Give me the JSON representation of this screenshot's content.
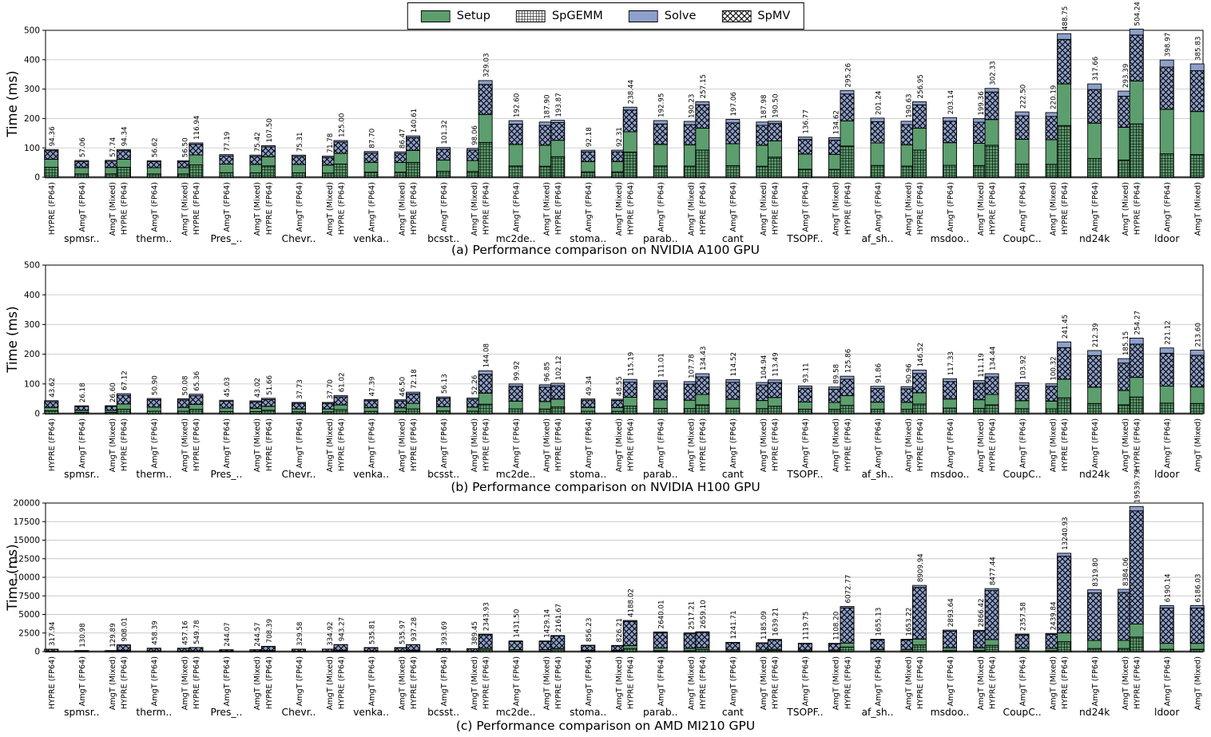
{
  "ylabel": "Time (ms)",
  "colors": {
    "setup": "#5c9e6e",
    "solve": "#8da0cb",
    "hatch": "#000000",
    "legend_bg": "#ffffff",
    "grid": "#c9c9c9",
    "axis": "#000000",
    "baseline": "#3c3c3c"
  },
  "legend": {
    "items": [
      {
        "label": "Setup",
        "swatch": "setup-solid-green"
      },
      {
        "label": "SpGEMM",
        "swatch": "grid-hatch"
      },
      {
        "label": "Solve",
        "swatch": "solve-solid-blue"
      },
      {
        "label": "SpMV",
        "swatch": "diagonal-crosshatch"
      }
    ]
  },
  "bar_series_names": [
    "HYPRE (FP64)",
    "AmgT (FP64)",
    "AmgT (Mixed)"
  ],
  "groups": [
    "spmsr..",
    "therm..",
    "Pres_..",
    "Chevr..",
    "venka..",
    "bcsst..",
    "mc2de..",
    "stoma..",
    "parab..",
    "cant",
    "TSOPF..",
    "af_sh..",
    "msdoo..",
    "CoupC..",
    "nd24k",
    "ldoor"
  ],
  "chart_data": [
    {
      "type": "bar",
      "title": "(a) Performance comparison on NVIDIA A100 GPU",
      "ylabel": "Time (ms)",
      "ylim": [
        0,
        500
      ],
      "yticks": [
        0,
        100,
        200,
        300,
        400,
        500
      ],
      "grid": true,
      "legend_position": "top-center",
      "categories": [
        "spmsr..",
        "therm..",
        "Pres_..",
        "Chevr..",
        "venka..",
        "bcsst..",
        "mc2de..",
        "stoma..",
        "parab..",
        "cant",
        "TSOPF..",
        "af_sh..",
        "msdoo..",
        "CoupC..",
        "nd24k",
        "ldoor"
      ],
      "series": [
        {
          "name": "HYPRE (FP64)",
          "values": [
            94.36,
            94.34,
            116.94,
            107.5,
            125.0,
            140.61,
            329.03,
            193.87,
            238.44,
            257.15,
            190.5,
            295.26,
            256.95,
            302.33,
            488.75,
            504.24
          ]
        },
        {
          "name": "AmgT (FP64)",
          "values": [
            57.06,
            56.62,
            77.19,
            75.31,
            87.7,
            101.32,
            192.6,
            92.18,
            192.95,
            197.06,
            136.77,
            201.24,
            203.14,
            222.5,
            317.66,
            398.97
          ]
        },
        {
          "name": "AmgT (Mixed)",
          "values": [
            57.74,
            56.5,
            75.42,
            71.78,
            86.47,
            98.06,
            187.9,
            92.31,
            190.23,
            187.98,
            134.62,
            190.63,
            199.36,
            220.19,
            293.39,
            385.83
          ]
        }
      ],
      "stack_components": [
        "SpGEMM",
        "Setup",
        "SpMV",
        "Solve"
      ],
      "segment_fractions": {
        "HYPRE (FP64)": [
          0.36,
          0.29,
          0.31,
          0.04
        ],
        "AmgT (FP64)": [
          0.2,
          0.38,
          0.36,
          0.06
        ],
        "AmgT (Mixed)": [
          0.2,
          0.38,
          0.36,
          0.06
        ]
      }
    },
    {
      "type": "bar",
      "title": "(b) Performance comparison on NVIDIA H100 GPU",
      "ylabel": "Time (ms)",
      "ylim": [
        0,
        500
      ],
      "yticks": [
        0,
        100,
        200,
        300,
        400,
        500
      ],
      "grid": true,
      "legend_position": "shared-top",
      "categories": [
        "spmsr..",
        "therm..",
        "Pres_..",
        "Chevr..",
        "venka..",
        "bcsst..",
        "mc2de..",
        "stoma..",
        "parab..",
        "cant",
        "TSOPF..",
        "af_sh..",
        "msdoo..",
        "CoupC..",
        "nd24k",
        "ldoor"
      ],
      "series": [
        {
          "name": "HYPRE (FP64)",
          "values": [
            43.62,
            67.12,
            65.36,
            51.66,
            61.02,
            72.18,
            144.08,
            102.12,
            115.19,
            134.43,
            113.49,
            125.86,
            146.52,
            134.44,
            241.45,
            254.27
          ]
        },
        {
          "name": "AmgT (FP64)",
          "values": [
            26.18,
            50.9,
            45.03,
            37.73,
            47.39,
            56.13,
            99.92,
            49.34,
            111.01,
            114.52,
            93.11,
            91.86,
            117.33,
            103.92,
            212.39,
            221.12
          ]
        },
        {
          "name": "AmgT (Mixed)",
          "values": [
            26.6,
            50.08,
            43.02,
            37.7,
            46.5,
            52.26,
            96.85,
            48.55,
            107.78,
            104.94,
            89.58,
            90.96,
            111.19,
            100.32,
            185.15,
            213.6
          ]
        }
      ],
      "stack_components": [
        "SpGEMM",
        "Setup",
        "SpMV",
        "Solve"
      ],
      "segment_fractions": {
        "HYPRE (FP64)": [
          0.22,
          0.26,
          0.44,
          0.08
        ],
        "AmgT (FP64)": [
          0.16,
          0.26,
          0.5,
          0.08
        ],
        "AmgT (Mixed)": [
          0.16,
          0.26,
          0.5,
          0.08
        ]
      }
    },
    {
      "type": "bar",
      "title": "(c) Performance comparison on AMD MI210 GPU",
      "ylabel": "Time (ms)",
      "ylim": [
        0,
        20000
      ],
      "yticks": [
        0,
        2500,
        5000,
        7500,
        10000,
        12500,
        15000,
        17500,
        20000
      ],
      "grid": true,
      "legend_position": "shared-top",
      "categories": [
        "spmsr..",
        "therm..",
        "Pres_..",
        "Chevr..",
        "venka..",
        "bcsst..",
        "mc2de..",
        "stoma..",
        "parab..",
        "cant",
        "TSOPF..",
        "af_sh..",
        "msdoo..",
        "CoupC..",
        "nd24k",
        "ldoor"
      ],
      "series": [
        {
          "name": "HYPRE (FP64)",
          "values": [
            317.94,
            908.01,
            549.78,
            708.39,
            943.27,
            937.28,
            2343.93,
            2161.67,
            4188.02,
            2659.1,
            1639.21,
            6072.77,
            8909.94,
            8477.44,
            13240.93,
            19539.79
          ]
        },
        {
          "name": "AmgT (FP64)",
          "values": [
            130.98,
            458.39,
            244.07,
            329.58,
            535.81,
            393.69,
            1431.5,
            856.23,
            2640.01,
            1241.71,
            1119.75,
            1655.13,
            2893.64,
            2357.58,
            8319.8,
            6190.14
          ]
        },
        {
          "name": "AmgT (Mixed)",
          "values": [
            129.89,
            457.16,
            244.57,
            334.92,
            535.97,
            389.45,
            1429.14,
            826.21,
            2517.21,
            1185.09,
            1108.2,
            1653.22,
            2866.42,
            2439.84,
            8384.06,
            6186.03
          ]
        }
      ],
      "stack_components": [
        "SpGEMM",
        "Setup",
        "SpMV",
        "Solve"
      ],
      "segment_fractions": {
        "HYPRE (FP64)": [
          0.1,
          0.09,
          0.78,
          0.03
        ],
        "AmgT (FP64)": [
          0.05,
          0.13,
          0.77,
          0.05
        ],
        "AmgT (Mixed)": [
          0.05,
          0.13,
          0.77,
          0.05
        ]
      }
    }
  ]
}
